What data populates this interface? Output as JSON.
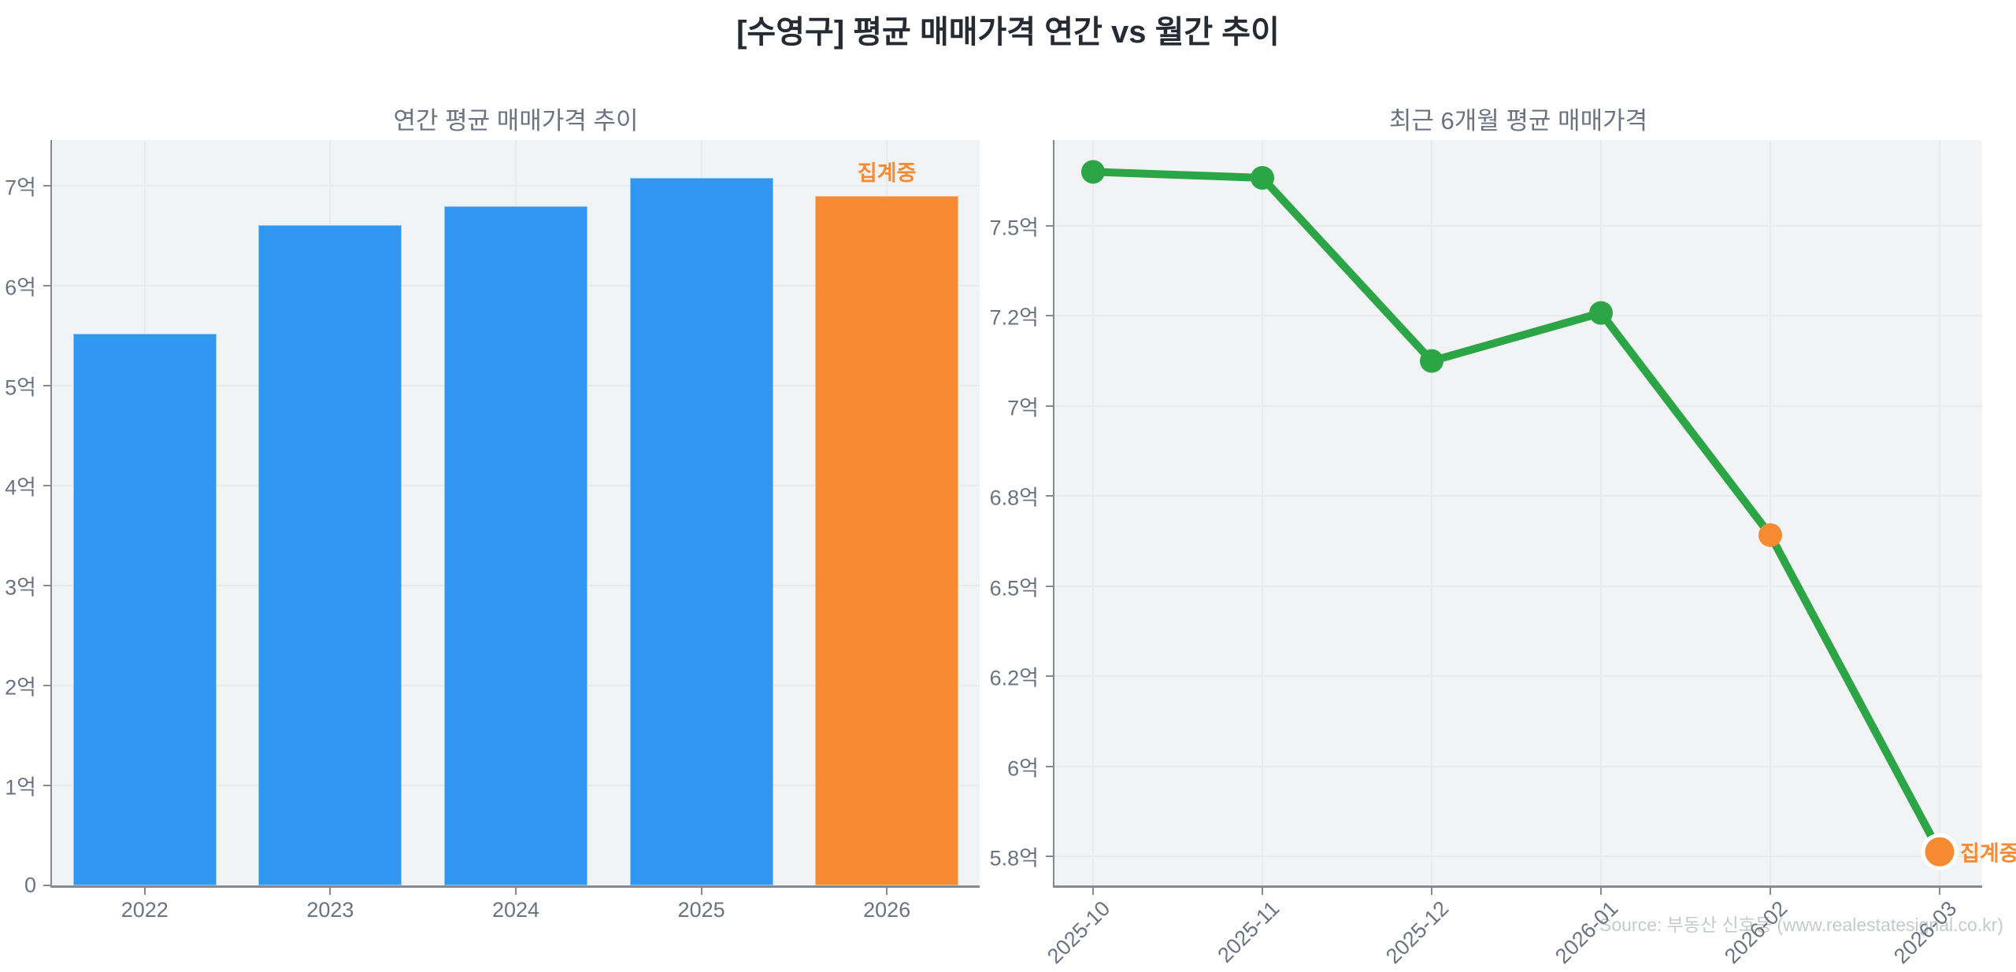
{
  "page": {
    "title": "[수영구] 평균 매매가격 연간 vs 월간 추이",
    "source": "Source: 부동산 신호등 (www.realestatesignal.co.kr)"
  },
  "colors": {
    "blue": "#3296f3",
    "orange": "#f78b33",
    "green": "#2ba545",
    "plot_bg": "#f2f3f4",
    "gridline": "#e8eaec",
    "spine": "#838a92",
    "tick_text": "#6b7280",
    "title_text": "#262b33",
    "watermark": "#c6cacd"
  },
  "chart_data": [
    {
      "type": "bar",
      "title": "연간 평균 매매가격 추이",
      "categories": [
        "2022",
        "2023",
        "2024",
        "2025",
        "2026"
      ],
      "values": [
        5.52,
        6.61,
        6.8,
        7.08,
        6.9
      ],
      "unit": "억",
      "bar_colors": [
        "blue",
        "blue",
        "blue",
        "blue",
        "orange"
      ],
      "annotation": {
        "text": "집계중",
        "index": 4
      },
      "y_ticks": [
        "0",
        "1억",
        "2억",
        "3억",
        "4억",
        "5억",
        "6억",
        "7억"
      ],
      "y_tick_values": [
        0,
        1,
        2,
        3,
        4,
        5,
        6,
        7
      ],
      "y_axis_max": 7.46,
      "xlabel": "",
      "ylabel": "",
      "grid": true,
      "legend": "none"
    },
    {
      "type": "line",
      "title": "최근 6개월 평균 매매가격",
      "x": [
        "2025-10",
        "2025-11",
        "2025-12",
        "2026-01",
        "2026-02",
        "2026-03"
      ],
      "values": [
        7.68,
        7.66,
        7.1,
        7.21,
        6.67,
        5.81
      ],
      "unit": "억",
      "point_colors": [
        "green",
        "green",
        "green",
        "green",
        "orange",
        "orange"
      ],
      "annotation": {
        "text": "집계중",
        "index": 5
      },
      "y_ticks": [
        "7.5억",
        "7.2억",
        "7억",
        "6.8억",
        "6.5억",
        "6.2억",
        "6억",
        "5.8억"
      ],
      "y_tick_values": [
        7.5,
        7.2,
        7.0,
        6.8,
        6.5,
        6.2,
        6.0,
        5.8
      ],
      "xlabel": "",
      "ylabel": "",
      "grid": true,
      "legend": "none"
    }
  ]
}
